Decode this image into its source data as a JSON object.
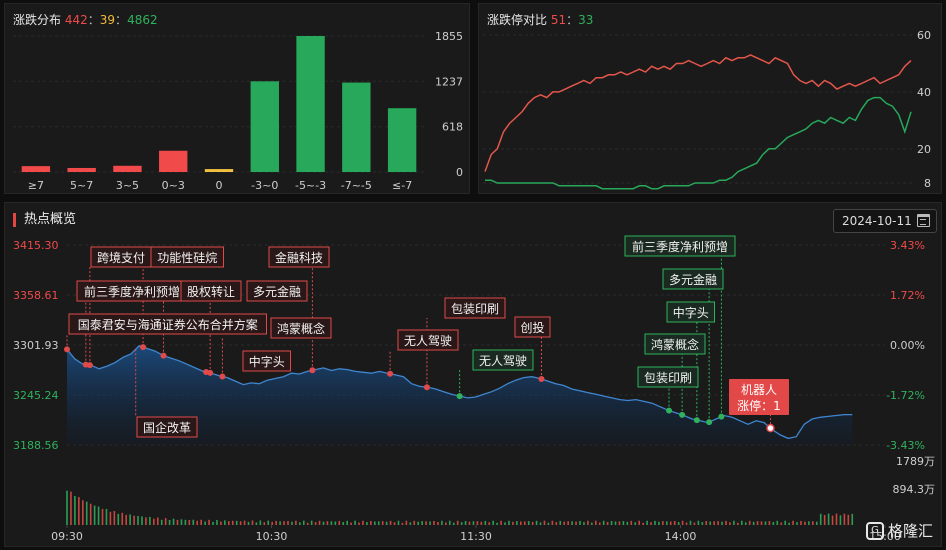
{
  "distribution": {
    "title": "涨跌分布",
    "up": "442",
    "flat": "39",
    "down": "4862",
    "separator": "：",
    "chart_data": {
      "type": "bar",
      "categories": [
        "≥7",
        "5~7",
        "3~5",
        "0~3",
        "0",
        "-3~0",
        "-5~-3",
        "-7~-5",
        "≤-7"
      ],
      "values": [
        80,
        55,
        85,
        290,
        40,
        1237,
        1855,
        1220,
        870
      ],
      "colors": [
        "#f04a4a",
        "#f04a4a",
        "#f04a4a",
        "#f04a4a",
        "#f0c040",
        "#27a85a",
        "#27a85a",
        "#27a85a",
        "#27a85a"
      ],
      "ylim": [
        0,
        1855
      ],
      "yticks": [
        "1855",
        "1237",
        "618",
        "0"
      ]
    }
  },
  "ratio": {
    "title": "涨跌停对比",
    "up": "51",
    "down": "33",
    "separator": "：",
    "chart_data": {
      "type": "line",
      "ylim": [
        8,
        60
      ],
      "yticks": [
        "60",
        "40",
        "20",
        "8"
      ],
      "series": [
        {
          "color": "#e4564a",
          "values": [
            12,
            18,
            20,
            26,
            29,
            31,
            33,
            36,
            38,
            39,
            38,
            40,
            40,
            41,
            42,
            43,
            44,
            43,
            45,
            45,
            46,
            46,
            47,
            46,
            47,
            48,
            47,
            49,
            48,
            49,
            48,
            50,
            50,
            51,
            50,
            49,
            50,
            51,
            50,
            52,
            51,
            52,
            52,
            53,
            52,
            51,
            50,
            52,
            51,
            50,
            46,
            44,
            43,
            44,
            42,
            44,
            43,
            41,
            42,
            43,
            42,
            43,
            44,
            45,
            43,
            44,
            45,
            46,
            49,
            51
          ]
        },
        {
          "color": "#27a85a",
          "values": [
            9,
            9,
            8,
            8,
            8,
            8,
            8,
            8,
            8,
            8,
            8,
            8,
            7,
            7,
            7,
            7,
            7,
            7,
            7,
            6,
            6,
            6,
            6,
            6,
            6,
            7,
            7,
            6,
            6,
            7,
            7,
            7,
            7,
            7,
            8,
            8,
            8,
            8,
            9,
            9,
            10,
            12,
            13,
            14,
            15,
            18,
            20,
            20,
            22,
            24,
            25,
            26,
            27,
            29,
            30,
            29,
            31,
            30,
            29,
            31,
            30,
            34,
            37,
            38,
            38,
            36,
            35,
            32,
            26,
            33
          ]
        }
      ]
    }
  },
  "hot": {
    "title": "热点概览",
    "date": "2024-10-11",
    "logo": "格隆汇",
    "logo_mark": "G",
    "chart_data": {
      "type": "area",
      "price_ticks": [
        "3415.30",
        "3358.61",
        "3301.93",
        "3245.24",
        "3188.56"
      ],
      "pct_ticks": [
        "3.43%",
        "1.72%",
        "0.00%",
        "-1.72%",
        "-3.43%"
      ],
      "tick_colors": [
        "#f04a4a",
        "#f04a4a",
        "#cccccc",
        "#2fb25c",
        "#2fb25c"
      ],
      "time_ticks": [
        "09:30",
        "10:30",
        "11:30",
        "14:00",
        "15:00"
      ],
      "ylim": [
        3188.56,
        3415.3
      ],
      "volume_ticks": [
        "1789万",
        "894.3万"
      ],
      "volume_max": 1789,
      "price": [
        3297,
        3286,
        3280,
        3279,
        3275,
        3278,
        3282,
        3288,
        3292,
        3301,
        3298,
        3295,
        3290,
        3287,
        3284,
        3280,
        3276,
        3272,
        3270,
        3267,
        3265,
        3261,
        3257,
        3259,
        3258,
        3262,
        3264,
        3266,
        3270,
        3269,
        3272,
        3274,
        3276,
        3273,
        3275,
        3274,
        3272,
        3271,
        3270,
        3272,
        3270,
        3268,
        3266,
        3258,
        3255,
        3254,
        3252,
        3249,
        3246,
        3244,
        3242,
        3243,
        3246,
        3249,
        3253,
        3258,
        3262,
        3265,
        3266,
        3264,
        3261,
        3258,
        3256,
        3252,
        3250,
        3248,
        3246,
        3244,
        3242,
        3240,
        3239,
        3240,
        3238,
        3236,
        3232,
        3228,
        3225,
        3222,
        3218,
        3216,
        3214,
        3218,
        3222,
        3220,
        3216,
        3212,
        3216,
        3214,
        3206,
        3200,
        3196,
        3198,
        3212,
        3218,
        3220,
        3221,
        3222,
        3223,
        3223
      ],
      "labels": [
        {
          "text": "跨境支付",
          "t": 0.028,
          "price": 3262,
          "dot": "red"
        },
        {
          "text": "功能性硅烷",
          "t": 0.093,
          "price": 3287,
          "dot": "red"
        },
        {
          "text": "金融科技",
          "t": 0.3,
          "price": 3272,
          "dot": "red"
        },
        {
          "text": "前三季度净利预增",
          "t": 0.023,
          "price": 3280,
          "dot": "red"
        },
        {
          "text": "股权转让",
          "t": 0.118,
          "price": 3276,
          "dot": "red"
        },
        {
          "text": "多元金融",
          "t": 0.175,
          "price": 3257,
          "dot": "red"
        },
        {
          "text": "国泰君安与海通证券公布合并方案",
          "t": 0.0,
          "price": 3297,
          "dot": "red"
        },
        {
          "text": "鸿蒙概念",
          "t": 0.19,
          "price": 3262,
          "dot": "red"
        },
        {
          "text": "中字头",
          "t": 0.17,
          "price": 3259,
          "dot": "red"
        },
        {
          "text": "国企改革",
          "t": 0.084,
          "price": 3300,
          "dot": "none"
        },
        {
          "text": "包装印刷",
          "t": 0.44,
          "price": 3267,
          "dot": "red"
        },
        {
          "text": "无人驾驶",
          "t": 0.395,
          "price": 3272,
          "dot": "red"
        },
        {
          "text": "创投",
          "t": 0.58,
          "price": 3266,
          "dot": "red"
        },
        {
          "text": "无人驾驶",
          "t": 0.48,
          "price": 3246,
          "dot": "green"
        },
        {
          "text": "前三季度净利预增",
          "t": 0.8,
          "price": 3216,
          "dot": "green"
        },
        {
          "text": "多元金融",
          "t": 0.785,
          "price": 3218,
          "dot": "green"
        },
        {
          "text": "中字头",
          "t": 0.77,
          "price": 3220,
          "dot": "green"
        },
        {
          "text": "鸿蒙概念",
          "t": 0.752,
          "price": 3224,
          "dot": "green"
        },
        {
          "text": "包装印刷",
          "t": 0.736,
          "price": 3226,
          "dot": "green"
        },
        {
          "text": "机器人\n涨停：1",
          "t": 0.86,
          "price": 3212,
          "dot": "red-hollow"
        }
      ]
    }
  }
}
